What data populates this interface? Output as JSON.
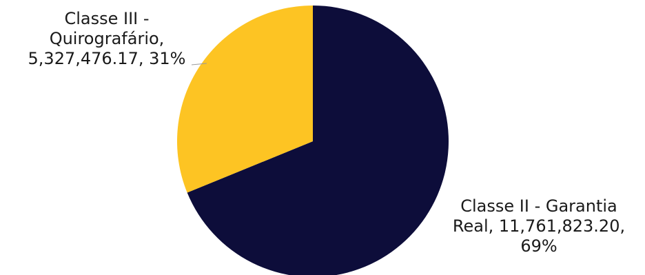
{
  "chart_data": {
    "type": "pie",
    "title": "",
    "series": [
      {
        "values": [
          11761823.2,
          5327476.17
        ]
      }
    ],
    "slices": [
      {
        "category": "Classe II - Garantia Real",
        "value": 11761823.2,
        "percent": 69,
        "color": "#0d0d3a",
        "label_lines": [
          "Classe II - Garantia",
          "Real, 11,761,823.20,",
          "69%"
        ]
      },
      {
        "category": "Classe III - Quirografário",
        "value": 5327476.17,
        "percent": 31,
        "color": "#fdc423",
        "label_lines": [
          "Classe III -",
          "Quirografário,",
          "5,327,476.17, 31%"
        ]
      }
    ],
    "legend": "none",
    "start_angle": "12 o'clock, clockwise"
  }
}
